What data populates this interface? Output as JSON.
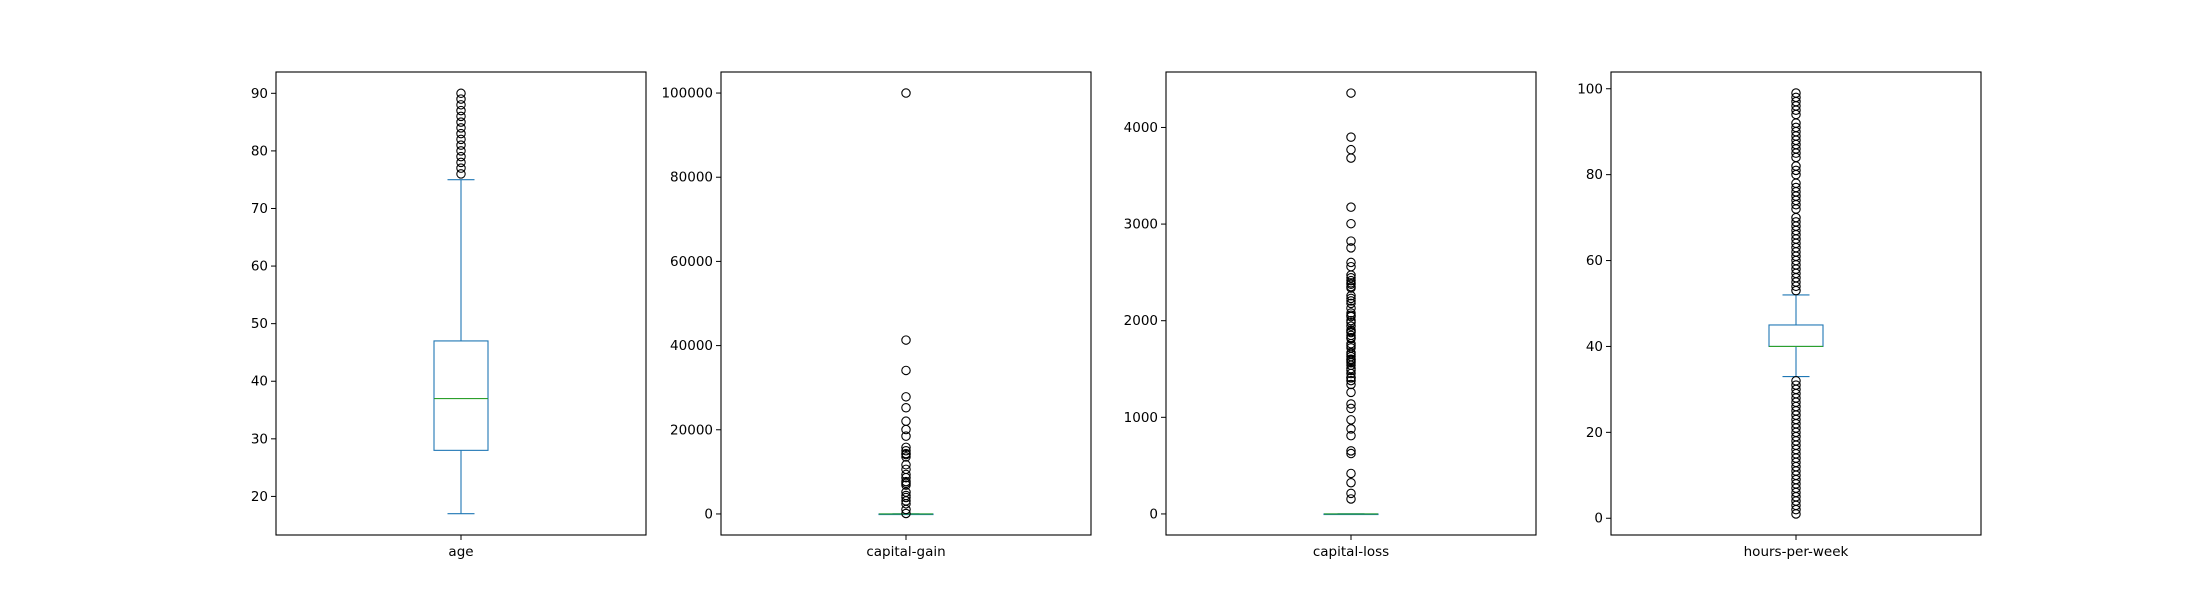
{
  "colors": {
    "box": "#1f77b4",
    "median": "#2ca02c",
    "flier": "#000000",
    "axes": "#000000",
    "background": "#ffffff"
  },
  "chart_data": [
    {
      "type": "box",
      "xlabel": "age",
      "categories": [
        "age"
      ],
      "ylim": [
        13.3,
        93.7
      ],
      "yticks": [
        20,
        30,
        40,
        50,
        60,
        70,
        80,
        90
      ],
      "ytick_labels": [
        "20",
        "30",
        "40",
        "50",
        "60",
        "70",
        "80",
        "90"
      ],
      "box": {
        "whisker_low": 17,
        "q1": 28,
        "median": 37,
        "q3": 47,
        "whisker_high": 75
      },
      "outliers": [
        76,
        77,
        78,
        79,
        80,
        81,
        82,
        83,
        84,
        85,
        86,
        87,
        88,
        89,
        90
      ]
    },
    {
      "type": "box",
      "xlabel": "capital-gain",
      "categories": [
        "capital-gain"
      ],
      "ylim": [
        -5000,
        105000
      ],
      "yticks": [
        0,
        20000,
        40000,
        60000,
        80000,
        100000
      ],
      "ytick_labels": [
        "0",
        "20000",
        "40000",
        "60000",
        "80000",
        "100000"
      ],
      "box": {
        "whisker_low": 0,
        "q1": 0,
        "median": 0,
        "q3": 0,
        "whisker_high": 0
      },
      "outliers": [
        99999,
        41310,
        34095,
        27828,
        25236,
        22040,
        20051,
        18481,
        15831,
        15024,
        14344,
        14084,
        13550,
        11678,
        10605,
        9386,
        8614,
        7688,
        7298,
        6849,
        5178,
        4386,
        3908,
        3103,
        2407,
        1055,
        114
      ]
    },
    {
      "type": "box",
      "xlabel": "capital-loss",
      "categories": [
        "capital-loss"
      ],
      "ylim": [
        -218,
        4574
      ],
      "yticks": [
        0,
        1000,
        2000,
        3000,
        4000
      ],
      "ytick_labels": [
        "0",
        "1000",
        "2000",
        "3000",
        "4000"
      ],
      "box": {
        "whisker_low": 0,
        "q1": 0,
        "median": 0,
        "q3": 0,
        "whisker_high": 0
      },
      "outliers": [
        4356,
        3900,
        3770,
        3683,
        3175,
        3004,
        2824,
        2754,
        2603,
        2559,
        2472,
        2444,
        2415,
        2392,
        2377,
        2352,
        2339,
        2258,
        2231,
        2205,
        2179,
        2129,
        2080,
        2057,
        2042,
        2001,
        1980,
        1944,
        1902,
        1887,
        1876,
        1848,
        1825,
        1816,
        1762,
        1741,
        1719,
        1669,
        1651,
        1628,
        1602,
        1594,
        1579,
        1564,
        1539,
        1504,
        1485,
        1453,
        1411,
        1408,
        1380,
        1340,
        1258,
        1138,
        1092,
        974,
        880,
        810,
        653,
        625,
        419,
        323,
        213,
        155
      ]
    },
    {
      "type": "box",
      "xlabel": "hours-per-week",
      "categories": [
        "hours-per-week"
      ],
      "ylim": [
        -3.9,
        103.9
      ],
      "yticks": [
        0,
        20,
        40,
        60,
        80,
        100
      ],
      "ytick_labels": [
        "0",
        "20",
        "40",
        "60",
        "80",
        "100"
      ],
      "box": {
        "whisker_low": 33,
        "q1": 40,
        "median": 40,
        "q3": 45,
        "whisker_high": 52
      },
      "outliers": [
        1,
        2,
        3,
        4,
        5,
        6,
        7,
        8,
        9,
        10,
        11,
        12,
        13,
        14,
        15,
        16,
        17,
        18,
        19,
        20,
        21,
        22,
        23,
        24,
        25,
        26,
        27,
        28,
        29,
        30,
        31,
        32,
        53,
        54,
        55,
        56,
        57,
        58,
        59,
        60,
        61,
        62,
        63,
        64,
        65,
        66,
        67,
        68,
        69,
        70,
        72,
        73,
        74,
        75,
        76,
        77,
        78,
        80,
        81,
        82,
        84,
        85,
        86,
        87,
        88,
        89,
        90,
        91,
        92,
        94,
        95,
        96,
        97,
        98,
        99
      ]
    }
  ]
}
